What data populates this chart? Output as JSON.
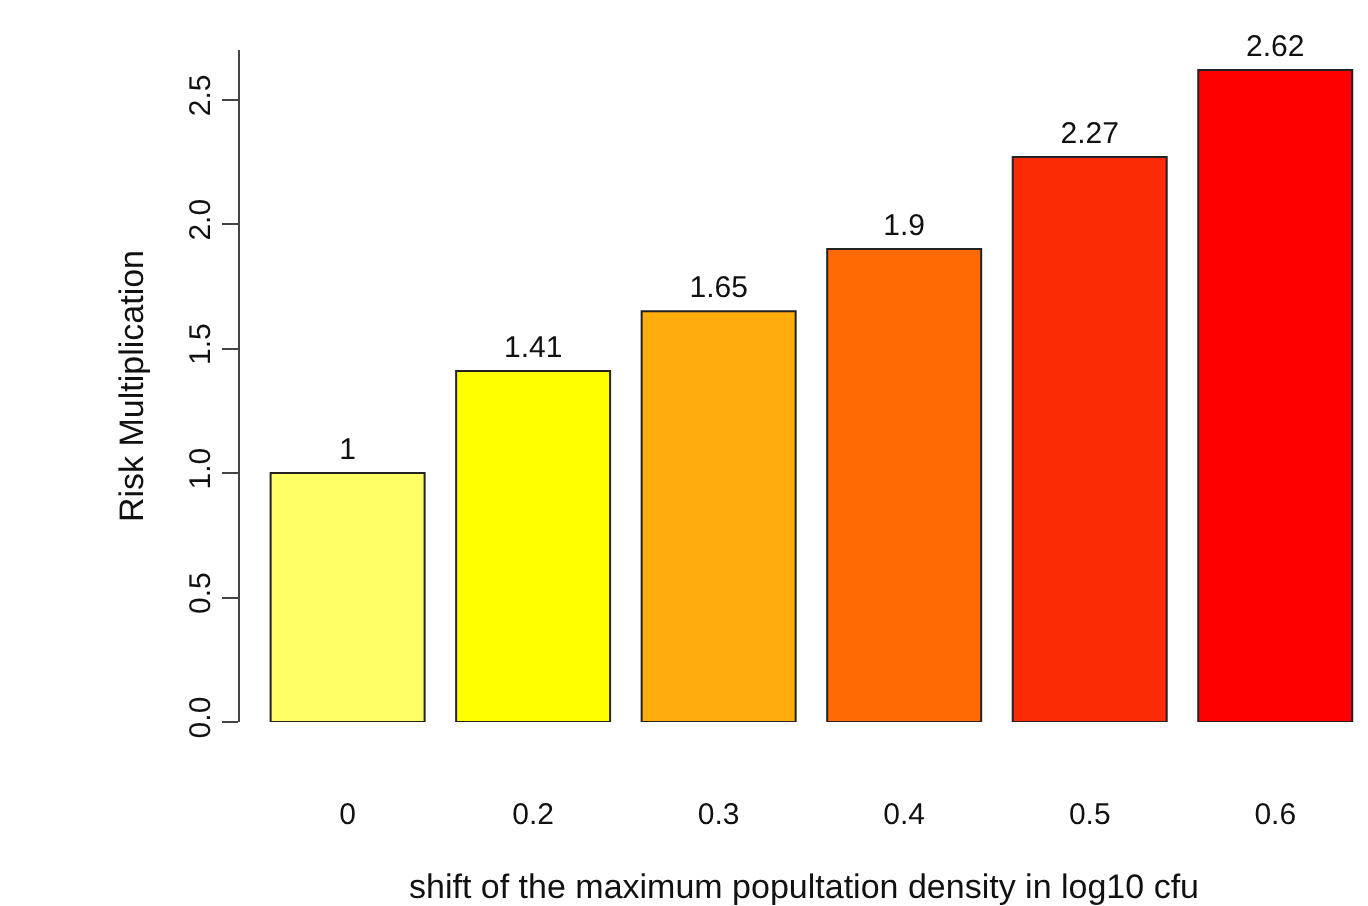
{
  "chart_data": {
    "type": "bar",
    "categories": [
      "0",
      "0.2",
      "0.3",
      "0.4",
      "0.5",
      "0.6"
    ],
    "values": [
      1,
      1.41,
      1.65,
      1.9,
      2.27,
      2.62
    ],
    "colors": [
      "#ffff66",
      "#ffff00",
      "#ffad0d",
      "#ff6a07",
      "#fc2a06",
      "#ff0000"
    ],
    "xlabel": "shift of the maximum popultation density in log10 cfu",
    "ylabel": "Risk Multiplication",
    "ylim": [
      0,
      2.7
    ],
    "yticks": [
      "0.0",
      "0.5",
      "1.0",
      "1.5",
      "2.0",
      "2.5"
    ],
    "data_labels": true
  }
}
